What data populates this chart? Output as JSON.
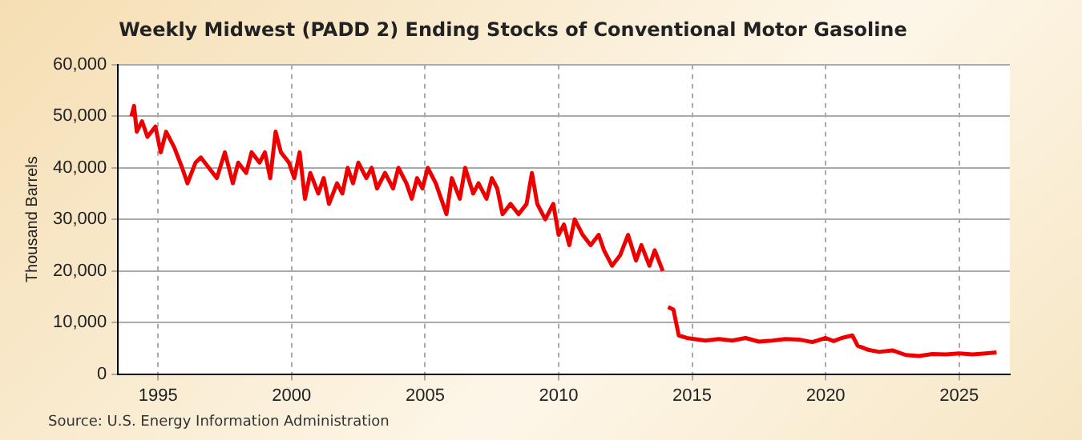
{
  "chart_data": {
    "type": "line",
    "title": "Weekly Midwest (PADD 2) Ending Stocks of Conventional Motor Gasoline",
    "ylabel": "Thousand Barrels",
    "annotations": [
      "Source: U.S. Energy Information Administration"
    ],
    "x": [
      1994.0,
      1994.1,
      1994.2,
      1994.4,
      1994.6,
      1994.9,
      1995.1,
      1995.3,
      1995.6,
      1995.9,
      1996.1,
      1996.4,
      1996.6,
      1996.9,
      1997.2,
      1997.5,
      1997.8,
      1998.0,
      1998.3,
      1998.5,
      1998.8,
      1999.0,
      1999.2,
      1999.4,
      1999.6,
      1999.9,
      2000.1,
      2000.3,
      2000.5,
      2000.7,
      2001.0,
      2001.2,
      2001.4,
      2001.7,
      2001.9,
      2002.1,
      2002.3,
      2002.5,
      2002.8,
      2003.0,
      2003.2,
      2003.5,
      2003.8,
      2004.0,
      2004.3,
      2004.5,
      2004.7,
      2004.9,
      2005.1,
      2005.4,
      2005.6,
      2005.8,
      2006.0,
      2006.3,
      2006.5,
      2006.8,
      2007.0,
      2007.3,
      2007.5,
      2007.7,
      2007.9,
      2008.2,
      2008.5,
      2008.8,
      2009.0,
      2009.2,
      2009.5,
      2009.8,
      2010.0,
      2010.2,
      2010.4,
      2010.6,
      2010.9,
      2011.2,
      2011.5,
      2011.7,
      2012.0,
      2012.3,
      2012.6,
      2012.9,
      2013.1,
      2013.4,
      2013.6,
      2013.9,
      2014.0,
      2014.1,
      2014.3,
      2014.4,
      2014.5,
      2014.8,
      2015.5,
      2016.0,
      2016.5,
      2017.0,
      2017.5,
      2018.0,
      2018.5,
      2019.0,
      2019.5,
      2020.0,
      2020.3,
      2020.6,
      2021.0,
      2021.2,
      2021.6,
      2022.0,
      2022.5,
      2023.0,
      2023.5,
      2024.0,
      2024.5,
      2025.0,
      2025.5,
      2026.0,
      2026.4
    ],
    "values": [
      50000,
      52000,
      47000,
      49000,
      46000,
      48000,
      43000,
      47000,
      44000,
      40000,
      37000,
      41000,
      42000,
      40000,
      38000,
      43000,
      37000,
      41000,
      39000,
      43000,
      41000,
      43000,
      38000,
      47000,
      43000,
      41000,
      38000,
      43000,
      34000,
      39000,
      35000,
      38000,
      33000,
      37000,
      35000,
      40000,
      37000,
      41000,
      38000,
      40000,
      36000,
      39000,
      36000,
      40000,
      37000,
      34000,
      38000,
      36000,
      40000,
      37000,
      34000,
      31000,
      38000,
      34000,
      40000,
      35000,
      37000,
      34000,
      38000,
      36000,
      31000,
      33000,
      31000,
      33000,
      39000,
      33000,
      30000,
      33000,
      27000,
      29000,
      25000,
      30000,
      27000,
      25000,
      27000,
      24000,
      21000,
      23000,
      27000,
      22000,
      25000,
      21000,
      24000,
      20000,
      null,
      13000,
      12500,
      10000,
      7500,
      7000,
      6500,
      6800,
      6500,
      7000,
      6300,
      6500,
      6800,
      6700,
      6200,
      7000,
      6400,
      7000,
      7500,
      5500,
      4700,
      4300,
      4600,
      3700,
      3500,
      3900,
      3800,
      4000,
      3800,
      4000,
      4200
    ],
    "color": "#ee0000",
    "xlim": [
      1993.5,
      2026.9
    ],
    "xticks": [
      1995,
      2000,
      2005,
      2010,
      2015,
      2020,
      2025
    ],
    "ylim": [
      0,
      60000
    ],
    "yticks": [
      0,
      {
        "value": 10000,
        "label": "10,000"
      },
      {
        "value": 20000,
        "label": "20,000"
      },
      {
        "value": 30000,
        "label": "30,000"
      },
      {
        "value": 40000,
        "label": "40,000"
      },
      {
        "value": 50000,
        "label": "50,000"
      },
      {
        "value": 60000,
        "label": "60,000"
      }
    ],
    "grid": true,
    "marker": "none",
    "line_style": "solid"
  }
}
